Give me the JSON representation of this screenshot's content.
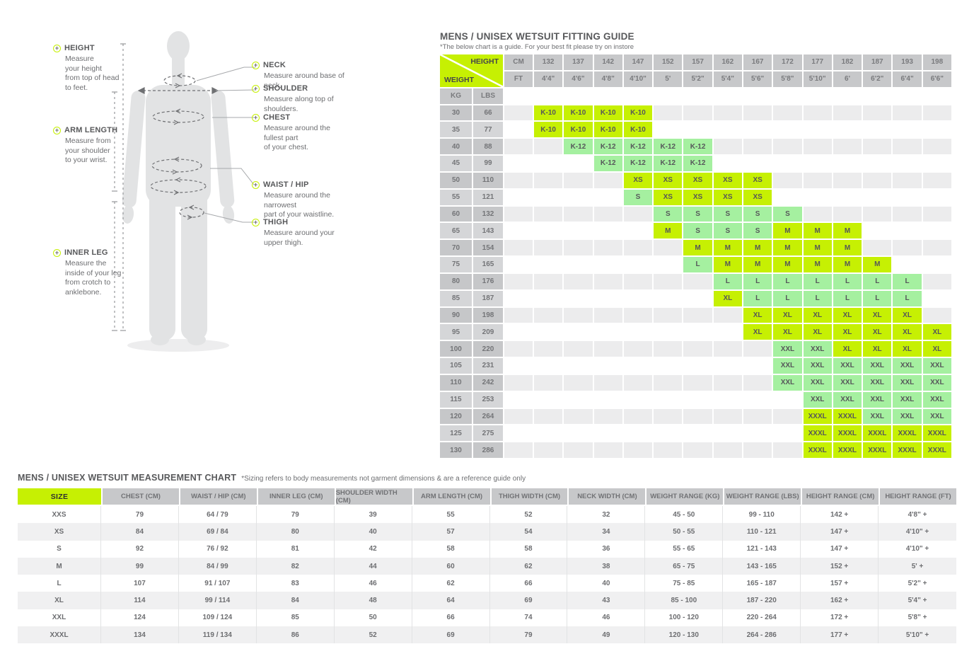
{
  "colors": {
    "lime": "#c6f003",
    "mint": "#a5f0a0",
    "header_gray": "#c7c8ca",
    "stripe_gray": "#ececed",
    "label_dark": "#c6c7c9",
    "label_light": "#d5d6d8",
    "title_text": "#58595b",
    "body_text": "#6d6e71"
  },
  "diagram": {
    "labels": {
      "height": {
        "title": "HEIGHT",
        "desc": "Measure\nyour height\nfrom top of head\nto feet."
      },
      "arm_length": {
        "title": "ARM LENGTH",
        "desc": "Measure from\nyour shoulder\nto your wrist."
      },
      "inner_leg": {
        "title": "INNER LEG",
        "desc": "Measure the\ninside of your leg\nfrom crotch to\nanklebone."
      },
      "neck": {
        "title": "NECK",
        "desc": "Measure around base of neck."
      },
      "shoulder": {
        "title": "SHOULDER",
        "desc": "Measure along top of shoulders."
      },
      "chest": {
        "title": "CHEST",
        "desc": "Measure around the fullest part\nof your chest."
      },
      "waist_hip": {
        "title": "WAIST / HIP",
        "desc": "Measure around the narrowest\npart of your waistline."
      },
      "thigh": {
        "title": "THIGH",
        "desc": "Measure around your\nupper thigh."
      }
    }
  },
  "fitting_guide": {
    "title": "MENS / UNISEX WETSUIT FITTING GUIDE",
    "subtitle": "*The below chart is a guide. For your best fit please try on instore",
    "corner": {
      "height_label": "HEIGHT",
      "weight_label": "WEIGHT"
    },
    "cm_label": "CM",
    "ft_label": "FT",
    "kg_label": "KG",
    "lbs_label": "LBS",
    "heights_cm": [
      "132",
      "137",
      "142",
      "147",
      "152",
      "157",
      "162",
      "167",
      "172",
      "177",
      "182",
      "187",
      "193",
      "198"
    ],
    "heights_ft": [
      "4'4\"",
      "4'6\"",
      "4'8\"",
      "4'10\"",
      "5'",
      "5'2\"",
      "5'4\"",
      "5'6\"",
      "5'8\"",
      "5'10\"",
      "6'",
      "6'2\"",
      "6'4\"",
      "6'6\""
    ],
    "rows": [
      {
        "kg": "30",
        "lbs": "66",
        "cells": [
          [
            "K-10",
            "lime"
          ],
          [
            "K-10",
            "lime"
          ],
          [
            "K-10",
            "lime"
          ],
          [
            "K-10",
            "lime"
          ],
          null,
          null,
          null,
          null,
          null,
          null,
          null,
          null,
          null,
          null
        ]
      },
      {
        "kg": "35",
        "lbs": "77",
        "cells": [
          [
            "K-10",
            "lime"
          ],
          [
            "K-10",
            "lime"
          ],
          [
            "K-10",
            "lime"
          ],
          [
            "K-10",
            "lime"
          ],
          null,
          null,
          null,
          null,
          null,
          null,
          null,
          null,
          null,
          null
        ]
      },
      {
        "kg": "40",
        "lbs": "88",
        "cells": [
          null,
          [
            "K-12",
            "mint"
          ],
          [
            "K-12",
            "mint"
          ],
          [
            "K-12",
            "mint"
          ],
          [
            "K-12",
            "mint"
          ],
          [
            "K-12",
            "mint"
          ],
          null,
          null,
          null,
          null,
          null,
          null,
          null,
          null
        ]
      },
      {
        "kg": "45",
        "lbs": "99",
        "cells": [
          null,
          null,
          [
            "K-12",
            "mint"
          ],
          [
            "K-12",
            "mint"
          ],
          [
            "K-12",
            "mint"
          ],
          [
            "K-12",
            "mint"
          ],
          null,
          null,
          null,
          null,
          null,
          null,
          null,
          null
        ]
      },
      {
        "kg": "50",
        "lbs": "110",
        "cells": [
          null,
          null,
          null,
          [
            "XS",
            "lime"
          ],
          [
            "XS",
            "lime"
          ],
          [
            "XS",
            "lime"
          ],
          [
            "XS",
            "lime"
          ],
          [
            "XS",
            "lime"
          ],
          null,
          null,
          null,
          null,
          null,
          null
        ]
      },
      {
        "kg": "55",
        "lbs": "121",
        "cells": [
          null,
          null,
          null,
          [
            "S",
            "mint"
          ],
          [
            "XS",
            "lime"
          ],
          [
            "XS",
            "lime"
          ],
          [
            "XS",
            "lime"
          ],
          [
            "XS",
            "lime"
          ],
          null,
          null,
          null,
          null,
          null,
          null
        ]
      },
      {
        "kg": "60",
        "lbs": "132",
        "cells": [
          null,
          null,
          null,
          null,
          [
            "S",
            "mint"
          ],
          [
            "S",
            "mint"
          ],
          [
            "S",
            "mint"
          ],
          [
            "S",
            "mint"
          ],
          [
            "S",
            "mint"
          ],
          null,
          null,
          null,
          null,
          null
        ]
      },
      {
        "kg": "65",
        "lbs": "143",
        "cells": [
          null,
          null,
          null,
          null,
          [
            "M",
            "lime"
          ],
          [
            "S",
            "mint"
          ],
          [
            "S",
            "mint"
          ],
          [
            "S",
            "mint"
          ],
          [
            "M",
            "lime"
          ],
          [
            "M",
            "lime"
          ],
          [
            "M",
            "lime"
          ],
          null,
          null,
          null
        ]
      },
      {
        "kg": "70",
        "lbs": "154",
        "cells": [
          null,
          null,
          null,
          null,
          null,
          [
            "M",
            "lime"
          ],
          [
            "M",
            "lime"
          ],
          [
            "M",
            "lime"
          ],
          [
            "M",
            "lime"
          ],
          [
            "M",
            "lime"
          ],
          [
            "M",
            "lime"
          ],
          null,
          null,
          null
        ]
      },
      {
        "kg": "75",
        "lbs": "165",
        "cells": [
          null,
          null,
          null,
          null,
          null,
          [
            "L",
            "mint"
          ],
          [
            "M",
            "lime"
          ],
          [
            "M",
            "lime"
          ],
          [
            "M",
            "lime"
          ],
          [
            "M",
            "lime"
          ],
          [
            "M",
            "lime"
          ],
          [
            "M",
            "lime"
          ],
          null,
          null
        ]
      },
      {
        "kg": "80",
        "lbs": "176",
        "cells": [
          null,
          null,
          null,
          null,
          null,
          null,
          [
            "L",
            "mint"
          ],
          [
            "L",
            "mint"
          ],
          [
            "L",
            "mint"
          ],
          [
            "L",
            "mint"
          ],
          [
            "L",
            "mint"
          ],
          [
            "L",
            "mint"
          ],
          [
            "L",
            "mint"
          ],
          null
        ]
      },
      {
        "kg": "85",
        "lbs": "187",
        "cells": [
          null,
          null,
          null,
          null,
          null,
          null,
          [
            "XL",
            "lime"
          ],
          [
            "L",
            "mint"
          ],
          [
            "L",
            "mint"
          ],
          [
            "L",
            "mint"
          ],
          [
            "L",
            "mint"
          ],
          [
            "L",
            "mint"
          ],
          [
            "L",
            "mint"
          ],
          null
        ]
      },
      {
        "kg": "90",
        "lbs": "198",
        "cells": [
          null,
          null,
          null,
          null,
          null,
          null,
          null,
          [
            "XL",
            "lime"
          ],
          [
            "XL",
            "lime"
          ],
          [
            "XL",
            "lime"
          ],
          [
            "XL",
            "lime"
          ],
          [
            "XL",
            "lime"
          ],
          [
            "XL",
            "lime"
          ],
          null
        ]
      },
      {
        "kg": "95",
        "lbs": "209",
        "cells": [
          null,
          null,
          null,
          null,
          null,
          null,
          null,
          [
            "XL",
            "lime"
          ],
          [
            "XL",
            "lime"
          ],
          [
            "XL",
            "lime"
          ],
          [
            "XL",
            "lime"
          ],
          [
            "XL",
            "lime"
          ],
          [
            "XL",
            "lime"
          ],
          [
            "XL",
            "lime"
          ]
        ]
      },
      {
        "kg": "100",
        "lbs": "220",
        "cells": [
          null,
          null,
          null,
          null,
          null,
          null,
          null,
          null,
          [
            "XXL",
            "mint"
          ],
          [
            "XXL",
            "mint"
          ],
          [
            "XL",
            "lime"
          ],
          [
            "XL",
            "lime"
          ],
          [
            "XL",
            "lime"
          ],
          [
            "XL",
            "lime"
          ]
        ]
      },
      {
        "kg": "105",
        "lbs": "231",
        "cells": [
          null,
          null,
          null,
          null,
          null,
          null,
          null,
          null,
          [
            "XXL",
            "mint"
          ],
          [
            "XXL",
            "mint"
          ],
          [
            "XXL",
            "mint"
          ],
          [
            "XXL",
            "mint"
          ],
          [
            "XXL",
            "mint"
          ],
          [
            "XXL",
            "mint"
          ]
        ]
      },
      {
        "kg": "110",
        "lbs": "242",
        "cells": [
          null,
          null,
          null,
          null,
          null,
          null,
          null,
          null,
          [
            "XXL",
            "mint"
          ],
          [
            "XXL",
            "mint"
          ],
          [
            "XXL",
            "mint"
          ],
          [
            "XXL",
            "mint"
          ],
          [
            "XXL",
            "mint"
          ],
          [
            "XXL",
            "mint"
          ]
        ]
      },
      {
        "kg": "115",
        "lbs": "253",
        "cells": [
          null,
          null,
          null,
          null,
          null,
          null,
          null,
          null,
          null,
          [
            "XXL",
            "mint"
          ],
          [
            "XXL",
            "mint"
          ],
          [
            "XXL",
            "mint"
          ],
          [
            "XXL",
            "mint"
          ],
          [
            "XXL",
            "mint"
          ]
        ]
      },
      {
        "kg": "120",
        "lbs": "264",
        "cells": [
          null,
          null,
          null,
          null,
          null,
          null,
          null,
          null,
          null,
          [
            "XXXL",
            "lime"
          ],
          [
            "XXXL",
            "lime"
          ],
          [
            "XXL",
            "mint"
          ],
          [
            "XXL",
            "mint"
          ],
          [
            "XXL",
            "mint"
          ]
        ]
      },
      {
        "kg": "125",
        "lbs": "275",
        "cells": [
          null,
          null,
          null,
          null,
          null,
          null,
          null,
          null,
          null,
          [
            "XXXL",
            "lime"
          ],
          [
            "XXXL",
            "lime"
          ],
          [
            "XXXL",
            "lime"
          ],
          [
            "XXXL",
            "lime"
          ],
          [
            "XXXL",
            "lime"
          ]
        ]
      },
      {
        "kg": "130",
        "lbs": "286",
        "cells": [
          null,
          null,
          null,
          null,
          null,
          null,
          null,
          null,
          null,
          [
            "XXXL",
            "lime"
          ],
          [
            "XXXL",
            "lime"
          ],
          [
            "XXXL",
            "lime"
          ],
          [
            "XXXL",
            "lime"
          ],
          [
            "XXXL",
            "lime"
          ]
        ]
      }
    ]
  },
  "measurement_chart": {
    "title": "MENS / UNISEX WETSUIT MEASUREMENT CHART",
    "note": "*Sizing refers to body measurements not garment dimensions & are a reference guide only",
    "columns": [
      "SIZE",
      "CHEST (CM)",
      "WAIST / HIP (CM)",
      "INNER LEG (CM)",
      "SHOULDER WIDTH (CM)",
      "ARM LENGTH (CM)",
      "THIGH WIDTH (CM)",
      "NECK WIDTH (CM)",
      "WEIGHT RANGE (KG)",
      "WEIGHT RANGE (LBS)",
      "HEIGHT RANGE (CM)",
      "HEIGHT RANGE (FT)"
    ],
    "rows": [
      [
        "XXS",
        "79",
        "64 / 79",
        "79",
        "39",
        "55",
        "52",
        "32",
        "45 - 50",
        "99 - 110",
        "142 +",
        "4'8\" +"
      ],
      [
        "XS",
        "84",
        "69 / 84",
        "80",
        "40",
        "57",
        "54",
        "34",
        "50 - 55",
        "110 - 121",
        "147 +",
        "4'10\" +"
      ],
      [
        "S",
        "92",
        "76 / 92",
        "81",
        "42",
        "58",
        "58",
        "36",
        "55 - 65",
        "121 - 143",
        "147 +",
        "4'10\" +"
      ],
      [
        "M",
        "99",
        "84 / 99",
        "82",
        "44",
        "60",
        "62",
        "38",
        "65 - 75",
        "143 - 165",
        "152 +",
        "5' +"
      ],
      [
        "L",
        "107",
        "91 / 107",
        "83",
        "46",
        "62",
        "66",
        "40",
        "75 - 85",
        "165 - 187",
        "157 +",
        "5'2\" +"
      ],
      [
        "XL",
        "114",
        "99 / 114",
        "84",
        "48",
        "64",
        "69",
        "43",
        "85 - 100",
        "187 - 220",
        "162 +",
        "5'4\" +"
      ],
      [
        "XXL",
        "124",
        "109 / 124",
        "85",
        "50",
        "66",
        "74",
        "46",
        "100 - 120",
        "220 - 264",
        "172 +",
        "5'8\" +"
      ],
      [
        "XXXL",
        "134",
        "119 / 134",
        "86",
        "52",
        "69",
        "79",
        "49",
        "120 - 130",
        "264 - 286",
        "177 +",
        "5'10\" +"
      ]
    ]
  }
}
